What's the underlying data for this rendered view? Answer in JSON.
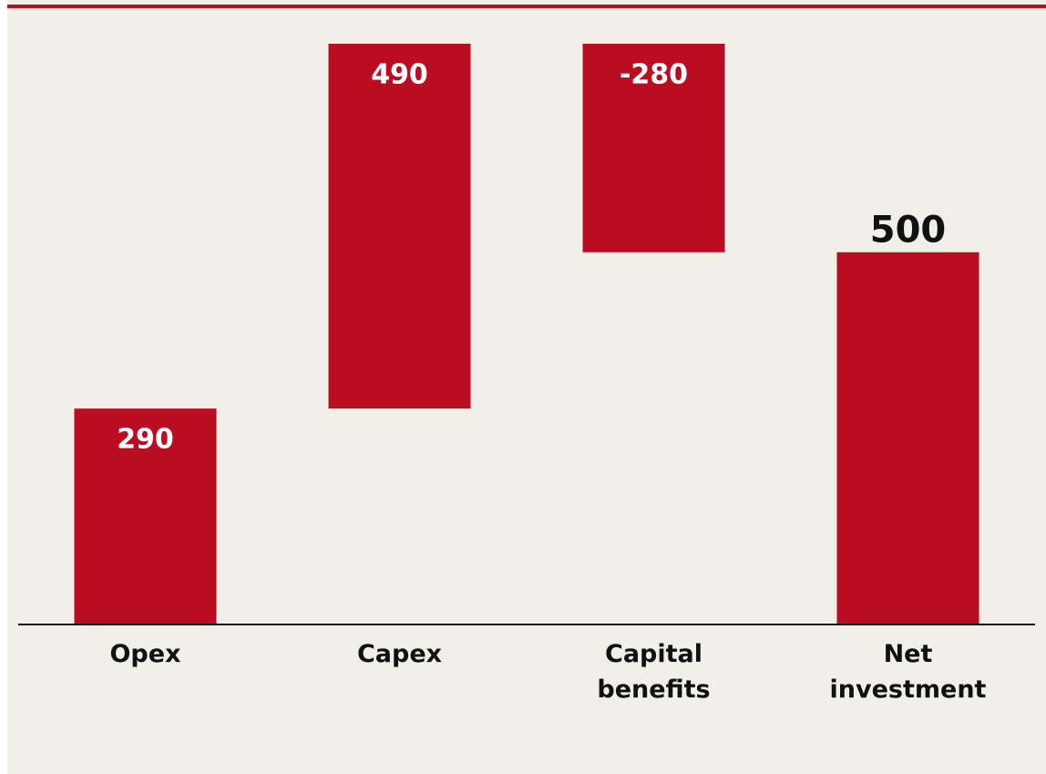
{
  "chart_data": {
    "type": "waterfall",
    "categories": [
      "Opex",
      "Capex",
      "Capital benefits",
      "Net investment"
    ],
    "values": [
      290,
      490,
      -280,
      500
    ],
    "totals": [
      false,
      false,
      false,
      true
    ],
    "color": "#bb0d22"
  }
}
